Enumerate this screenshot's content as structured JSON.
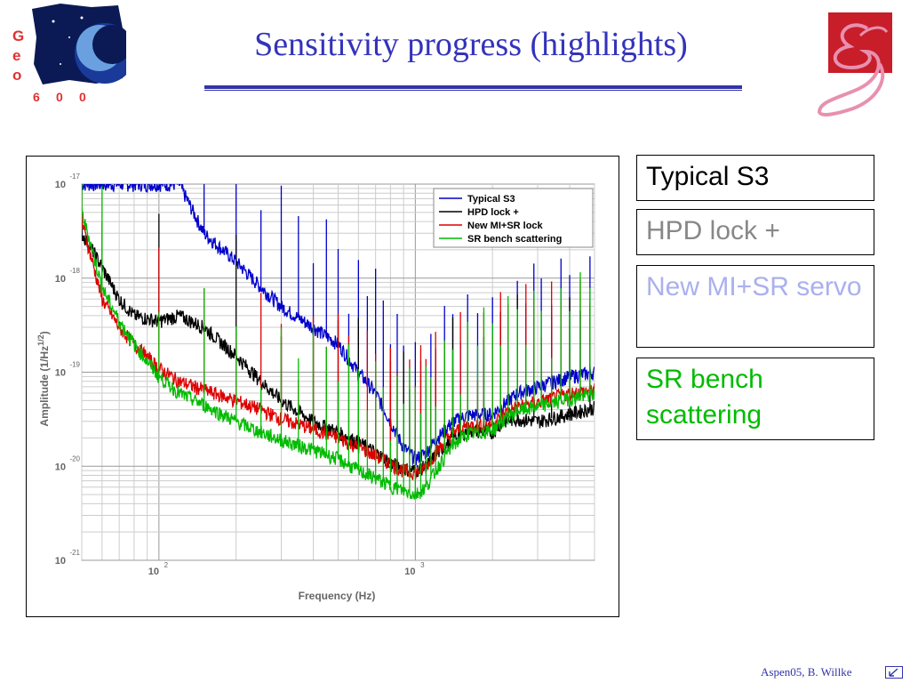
{
  "header": {
    "title": "Sensitivity progress (highlights)",
    "logo_left_text": [
      "G",
      "e",
      "o",
      "6",
      "0",
      "0"
    ]
  },
  "chart_data": {
    "type": "line",
    "xlabel": "Frequency (Hz)",
    "ylabel": "Amplitude (1/Hz^1/2)",
    "x_scale": "log",
    "y_scale": "log",
    "xlim": [
      50,
      5000
    ],
    "ylim": [
      1e-21,
      1e-17
    ],
    "grid": true,
    "legend_position": "top-right",
    "x_ticks": [
      {
        "value": 100,
        "base": "10",
        "exp": "2"
      },
      {
        "value": 1000,
        "base": "10",
        "exp": "3"
      }
    ],
    "y_ticks": [
      {
        "value": 1e-17,
        "base": "10",
        "exp": "-17"
      },
      {
        "value": 1e-18,
        "base": "10",
        "exp": "-18"
      },
      {
        "value": 1e-19,
        "base": "10",
        "exp": "-19"
      },
      {
        "value": 1e-20,
        "base": "10",
        "exp": "-20"
      },
      {
        "value": 1e-21,
        "base": "10",
        "exp": "-21"
      }
    ],
    "series": [
      {
        "name": "Typical S3",
        "color": "#0000cc",
        "x": [
          50,
          55,
          60,
          70,
          80,
          100,
          120,
          150,
          200,
          250,
          300,
          400,
          500,
          600,
          700,
          800,
          900,
          1000,
          1100,
          1200,
          1400,
          1600,
          2000,
          2200,
          2500,
          3000,
          4000,
          5000
        ],
        "y": [
          1e-17,
          1e-17,
          1e-17,
          1e-17,
          1e-17,
          1e-17,
          1e-17,
          3e-18,
          1.5e-18,
          8e-19,
          5e-19,
          3e-19,
          2e-19,
          1e-19,
          6e-20,
          3e-20,
          1.6e-20,
          1.2e-20,
          1.4e-20,
          1.9e-20,
          3e-20,
          3.5e-20,
          3.6e-20,
          4.5e-20,
          6e-20,
          7e-20,
          9e-20,
          1e-19
        ]
      },
      {
        "name": "HPD lock +",
        "color": "#000000",
        "x": [
          50,
          55,
          60,
          70,
          80,
          100,
          120,
          150,
          200,
          250,
          300,
          400,
          500,
          600,
          700,
          800,
          900,
          1000,
          1100,
          1200,
          1400,
          1600,
          2000,
          2200,
          2500,
          3000,
          4000,
          5000
        ],
        "y": [
          3e-18,
          2e-18,
          1.3e-18,
          6e-19,
          4e-19,
          3.5e-19,
          4e-19,
          3e-19,
          1.5e-19,
          8e-20,
          5e-20,
          3e-20,
          2.3e-20,
          1.8e-20,
          1.4e-20,
          1.1e-20,
          9.5e-21,
          9e-21,
          1e-20,
          1.3e-20,
          2e-20,
          2.4e-20,
          2.3e-20,
          3e-20,
          3.2e-20,
          3e-20,
          3.6e-20,
          4.2e-20
        ]
      },
      {
        "name": "New MI+SR lock",
        "color": "#dd0000",
        "x": [
          50,
          55,
          60,
          70,
          80,
          100,
          120,
          150,
          200,
          250,
          300,
          400,
          500,
          600,
          700,
          800,
          900,
          1000,
          1100,
          1200,
          1400,
          1600,
          2000,
          2200,
          2500,
          3000,
          4000,
          5000
        ],
        "y": [
          4e-18,
          1.5e-18,
          6e-19,
          3e-19,
          2e-19,
          1.1e-19,
          8e-20,
          6.5e-20,
          5e-20,
          4e-20,
          3.2e-20,
          2.5e-20,
          2e-20,
          1.6e-20,
          1.3e-20,
          1.05e-20,
          9e-21,
          8.5e-21,
          1e-20,
          1.4e-20,
          2.3e-20,
          2.7e-20,
          2.8e-20,
          3.6e-20,
          4.3e-20,
          4.8e-20,
          6e-20,
          6.5e-20
        ]
      },
      {
        "name": "SR bench scattering",
        "color": "#00bb00",
        "x": [
          50,
          55,
          60,
          70,
          80,
          100,
          120,
          150,
          200,
          250,
          300,
          400,
          500,
          600,
          700,
          800,
          900,
          1000,
          1100,
          1200,
          1400,
          1600,
          2000,
          2200,
          2500,
          3000,
          4000,
          5000
        ],
        "y": [
          5e-18,
          2e-18,
          8e-19,
          3.5e-19,
          2e-19,
          9e-20,
          6e-20,
          4.5e-20,
          3e-20,
          2.3e-20,
          1.9e-20,
          1.5e-20,
          1.2e-20,
          9e-21,
          7.5e-21,
          6.2e-21,
          5.5e-21,
          5e-21,
          6e-21,
          9e-21,
          1.7e-20,
          2.2e-20,
          2.4e-20,
          3.1e-20,
          3.9e-20,
          4.3e-20,
          5.3e-20,
          5.8e-20
        ]
      }
    ]
  },
  "annotations": [
    {
      "text": "Typical S3",
      "color": "#000000"
    },
    {
      "text": "HPD lock +",
      "color": "#888888"
    },
    {
      "text": "New MI+SR servo",
      "color": "#aab0ee"
    },
    {
      "text": "SR bench scattering",
      "color": "#00bb00"
    }
  ],
  "footer": {
    "credit": "Aspen05, B. Willke"
  }
}
